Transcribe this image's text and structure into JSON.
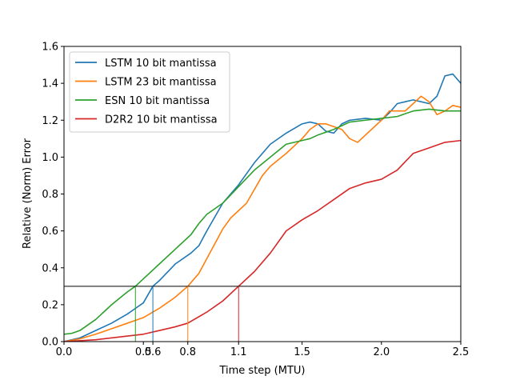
{
  "chart_data": {
    "type": "line",
    "title": "",
    "xlabel": "Time step (MTU)",
    "ylabel": "Relative (Norm) Error",
    "xlim": [
      0.0,
      2.5
    ],
    "ylim": [
      0.0,
      1.6
    ],
    "xticks": [
      {
        "value": 0.0,
        "label": "0.0"
      },
      {
        "value": 0.5,
        "label": "0.5"
      },
      {
        "value": 0.56,
        "label": "0.6"
      },
      {
        "value": 0.78,
        "label": "0.8"
      },
      {
        "value": 1.1,
        "label": "1.1"
      },
      {
        "value": 1.5,
        "label": "1.5"
      },
      {
        "value": 2.0,
        "label": "2.0"
      },
      {
        "value": 2.5,
        "label": "2.5"
      }
    ],
    "yticks": [
      {
        "value": 0.0,
        "label": "0.0"
      },
      {
        "value": 0.2,
        "label": "0.2"
      },
      {
        "value": 0.4,
        "label": "0.4"
      },
      {
        "value": 0.6,
        "label": "0.6"
      },
      {
        "value": 0.8,
        "label": "0.8"
      },
      {
        "value": 1.0,
        "label": "1.0"
      },
      {
        "value": 1.2,
        "label": "1.2"
      },
      {
        "value": 1.4,
        "label": "1.4"
      },
      {
        "value": 1.6,
        "label": "1.6"
      }
    ],
    "threshold": {
      "y": 0.3,
      "color": "#000000"
    },
    "markers": [
      {
        "x": 0.45,
        "color": "#2ca02c"
      },
      {
        "x": 0.56,
        "color": "#1f77b4"
      },
      {
        "x": 0.78,
        "color": "#ff7f0e"
      },
      {
        "x": 1.1,
        "color": "#d62728"
      }
    ],
    "legend": {
      "placement": "top-left"
    },
    "grid": false,
    "series": [
      {
        "name": "LSTM 10 bit mantissa",
        "color": "#1f77b4",
        "points": [
          [
            0.0,
            0.0
          ],
          [
            0.1,
            0.02
          ],
          [
            0.2,
            0.06
          ],
          [
            0.3,
            0.1
          ],
          [
            0.4,
            0.15
          ],
          [
            0.45,
            0.18
          ],
          [
            0.5,
            0.21
          ],
          [
            0.56,
            0.3
          ],
          [
            0.6,
            0.33
          ],
          [
            0.7,
            0.42
          ],
          [
            0.8,
            0.48
          ],
          [
            0.85,
            0.52
          ],
          [
            0.9,
            0.6
          ],
          [
            1.0,
            0.75
          ],
          [
            1.1,
            0.85
          ],
          [
            1.2,
            0.97
          ],
          [
            1.3,
            1.07
          ],
          [
            1.4,
            1.13
          ],
          [
            1.5,
            1.18
          ],
          [
            1.55,
            1.19
          ],
          [
            1.6,
            1.18
          ],
          [
            1.65,
            1.14
          ],
          [
            1.7,
            1.13
          ],
          [
            1.75,
            1.18
          ],
          [
            1.8,
            1.2
          ],
          [
            1.9,
            1.21
          ],
          [
            2.0,
            1.2
          ],
          [
            2.05,
            1.24
          ],
          [
            2.1,
            1.29
          ],
          [
            2.15,
            1.3
          ],
          [
            2.2,
            1.31
          ],
          [
            2.3,
            1.29
          ],
          [
            2.35,
            1.33
          ],
          [
            2.4,
            1.44
          ],
          [
            2.45,
            1.45
          ],
          [
            2.5,
            1.4
          ]
        ]
      },
      {
        "name": "LSTM 23 bit mantissa",
        "color": "#ff7f0e",
        "points": [
          [
            0.0,
            0.0
          ],
          [
            0.1,
            0.015
          ],
          [
            0.2,
            0.04
          ],
          [
            0.3,
            0.07
          ],
          [
            0.4,
            0.1
          ],
          [
            0.5,
            0.13
          ],
          [
            0.56,
            0.16
          ],
          [
            0.6,
            0.18
          ],
          [
            0.7,
            0.24
          ],
          [
            0.78,
            0.3
          ],
          [
            0.85,
            0.37
          ],
          [
            0.9,
            0.45
          ],
          [
            1.0,
            0.61
          ],
          [
            1.05,
            0.67
          ],
          [
            1.15,
            0.75
          ],
          [
            1.25,
            0.9
          ],
          [
            1.3,
            0.95
          ],
          [
            1.4,
            1.02
          ],
          [
            1.5,
            1.1
          ],
          [
            1.55,
            1.15
          ],
          [
            1.6,
            1.18
          ],
          [
            1.65,
            1.18
          ],
          [
            1.75,
            1.15
          ],
          [
            1.8,
            1.1
          ],
          [
            1.85,
            1.08
          ],
          [
            1.9,
            1.12
          ],
          [
            2.0,
            1.2
          ],
          [
            2.05,
            1.25
          ],
          [
            2.15,
            1.25
          ],
          [
            2.2,
            1.29
          ],
          [
            2.25,
            1.33
          ],
          [
            2.3,
            1.3
          ],
          [
            2.35,
            1.23
          ],
          [
            2.4,
            1.25
          ],
          [
            2.45,
            1.28
          ],
          [
            2.5,
            1.27
          ]
        ]
      },
      {
        "name": "ESN 10 bit mantissa",
        "color": "#2ca02c",
        "points": [
          [
            0.0,
            0.04
          ],
          [
            0.05,
            0.045
          ],
          [
            0.1,
            0.06
          ],
          [
            0.2,
            0.12
          ],
          [
            0.3,
            0.2
          ],
          [
            0.4,
            0.27
          ],
          [
            0.45,
            0.3
          ],
          [
            0.5,
            0.34
          ],
          [
            0.6,
            0.42
          ],
          [
            0.7,
            0.5
          ],
          [
            0.8,
            0.58
          ],
          [
            0.85,
            0.64
          ],
          [
            0.9,
            0.69
          ],
          [
            1.0,
            0.75
          ],
          [
            1.1,
            0.84
          ],
          [
            1.2,
            0.93
          ],
          [
            1.3,
            1.0
          ],
          [
            1.4,
            1.07
          ],
          [
            1.5,
            1.09
          ],
          [
            1.55,
            1.1
          ],
          [
            1.6,
            1.12
          ],
          [
            1.7,
            1.15
          ],
          [
            1.8,
            1.19
          ],
          [
            1.9,
            1.2
          ],
          [
            2.0,
            1.21
          ],
          [
            2.1,
            1.22
          ],
          [
            2.2,
            1.25
          ],
          [
            2.3,
            1.26
          ],
          [
            2.4,
            1.25
          ],
          [
            2.5,
            1.25
          ]
        ]
      },
      {
        "name": "D2R2 10 bit mantissa",
        "color": "#d62728",
        "points": [
          [
            0.0,
            0.0
          ],
          [
            0.2,
            0.01
          ],
          [
            0.4,
            0.03
          ],
          [
            0.5,
            0.04
          ],
          [
            0.6,
            0.06
          ],
          [
            0.7,
            0.08
          ],
          [
            0.78,
            0.1
          ],
          [
            0.9,
            0.16
          ],
          [
            1.0,
            0.22
          ],
          [
            1.1,
            0.3
          ],
          [
            1.2,
            0.38
          ],
          [
            1.3,
            0.48
          ],
          [
            1.4,
            0.6
          ],
          [
            1.5,
            0.66
          ],
          [
            1.6,
            0.71
          ],
          [
            1.7,
            0.77
          ],
          [
            1.8,
            0.83
          ],
          [
            1.9,
            0.86
          ],
          [
            2.0,
            0.88
          ],
          [
            2.1,
            0.93
          ],
          [
            2.2,
            1.02
          ],
          [
            2.3,
            1.05
          ],
          [
            2.4,
            1.08
          ],
          [
            2.5,
            1.09
          ]
        ]
      }
    ]
  }
}
